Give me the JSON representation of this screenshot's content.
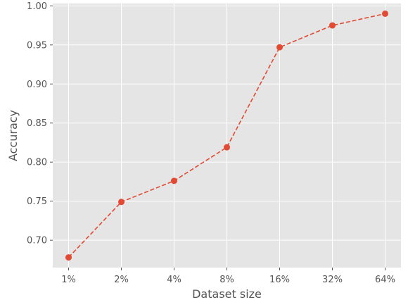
{
  "chart_data": {
    "type": "line",
    "categories": [
      "1%",
      "2%",
      "4%",
      "8%",
      "16%",
      "32%",
      "64%"
    ],
    "series": [
      {
        "values": [
          0.678,
          0.749,
          0.776,
          0.819,
          0.947,
          0.975,
          0.99
        ]
      }
    ],
    "xlabel": "Dataset size",
    "ylabel": "Accuracy",
    "ylim": [
      0.665,
      1.003
    ],
    "yticks": [
      "0.70",
      "0.75",
      "0.80",
      "0.85",
      "0.90",
      "0.95",
      "1.00"
    ],
    "grid": true,
    "line_style": "dashed",
    "marker": "circle",
    "colors": {
      "series": "#E24A33",
      "plot_background": "#E5E5E5",
      "grid": "#FFFFFF",
      "text": "#555555"
    }
  }
}
